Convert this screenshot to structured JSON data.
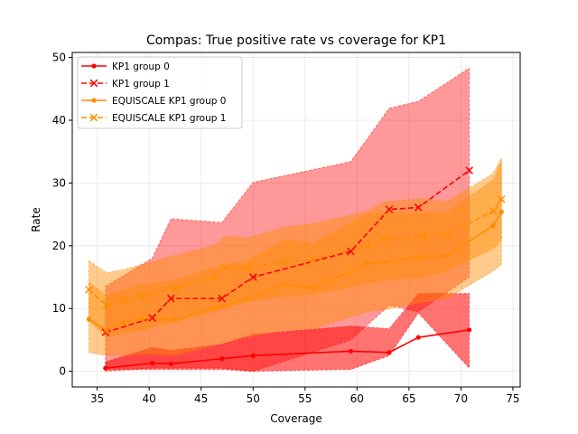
{
  "chart_data": {
    "type": "line",
    "title": "Compas: True positive rate vs coverage for KP1",
    "xlabel": "Coverage",
    "ylabel": "Rate",
    "xlim": [
      32.6,
      75.7
    ],
    "ylim": [
      -2.5,
      50.8
    ],
    "xticks": [
      35,
      40,
      45,
      50,
      55,
      60,
      65,
      70,
      75
    ],
    "yticks": [
      0,
      10,
      20,
      30,
      40,
      50
    ],
    "grid": true,
    "legend_position": "top-left",
    "series": [
      {
        "name": "KP1 group 0",
        "color": "#ff0000",
        "dashed": false,
        "marker": "dot",
        "x": [
          35.8,
          40.3,
          42.1,
          47.0,
          50.0,
          59.4,
          63.1,
          65.9,
          70.8
        ],
        "y": [
          0.5,
          1.3,
          1.2,
          2.0,
          2.5,
          3.2,
          3.0,
          5.4,
          6.6
        ],
        "band_lower": [
          0.3,
          0.3,
          0.3,
          0.3,
          0.0,
          0.3,
          2.5,
          9.3,
          0.5
        ],
        "band_upper": [
          1.5,
          3.8,
          3.3,
          4.3,
          5.9,
          7.2,
          6.8,
          12.4,
          12.4
        ],
        "band_color": "#ff0000",
        "band_opacity": 0.55
      },
      {
        "name": "KP1 group 1",
        "color": "#ff0000",
        "dashed": true,
        "marker": "x",
        "x": [
          35.8,
          40.3,
          42.1,
          47.0,
          50.0,
          59.4,
          63.1,
          65.9,
          70.8
        ],
        "y": [
          6.2,
          8.5,
          11.6,
          11.6,
          15.0,
          19.1,
          25.8,
          26.1,
          32.0
        ],
        "band_lower": [
          0.0,
          0.5,
          0.5,
          0.5,
          0.0,
          5.0,
          10.5,
          9.5,
          15.0
        ],
        "band_upper": [
          13.5,
          18.0,
          24.3,
          23.7,
          30.1,
          33.4,
          41.9,
          43.0,
          48.3
        ],
        "band_color": "#ff0000",
        "band_opacity": 0.4
      },
      {
        "name": "EQUISCALE KP1 group 0",
        "color": "#ff8c00",
        "dashed": false,
        "marker": "dot",
        "x": [
          34.2,
          35.9,
          37.5,
          39.3,
          42.5,
          46.2,
          49.4,
          53.1,
          55.8,
          61.0,
          62.6,
          66.3,
          68.6,
          73.1,
          73.9
        ],
        "y": [
          8.3,
          6.5,
          7.8,
          8.4,
          8.2,
          10.1,
          11.5,
          13.9,
          13.2,
          17.2,
          17.4,
          18.3,
          18.4,
          23.2,
          25.4
        ],
        "band_lower": [
          3.0,
          2.5,
          2.5,
          2.8,
          2.6,
          4.1,
          5.5,
          6.5,
          6.8,
          9.5,
          9.8,
          11.0,
          11.5,
          16.0,
          17.0
        ],
        "band_upper": [
          14.2,
          12.0,
          13.0,
          13.8,
          14.5,
          16.5,
          17.5,
          21.0,
          20.5,
          25.0,
          25.3,
          25.2,
          25.3,
          30.5,
          33.5
        ],
        "band_color": "#ff8c00",
        "band_opacity": 0.45
      },
      {
        "name": "EQUISCALE KP1 group 1",
        "color": "#ff8c00",
        "dashed": true,
        "marker": "x",
        "x": [
          34.2,
          35.9,
          37.5,
          39.3,
          42.5,
          46.2,
          47.3,
          49.4,
          53.1,
          55.8,
          61.0,
          62.6,
          66.3,
          68.6,
          73.1,
          73.9
        ],
        "y": [
          13.0,
          10.5,
          11.3,
          11.9,
          13.2,
          15.0,
          16.5,
          16.4,
          17.5,
          17.8,
          20.0,
          21.0,
          21.5,
          21.8,
          25.5,
          27.4
        ],
        "band_lower": [
          8.0,
          5.5,
          6.0,
          6.5,
          8.0,
          9.5,
          10.0,
          11.0,
          12.0,
          12.3,
          14.0,
          14.5,
          15.0,
          16.0,
          19.5,
          21.0
        ],
        "band_upper": [
          17.6,
          15.7,
          16.2,
          17.0,
          18.5,
          20.0,
          21.5,
          21.2,
          23.0,
          23.5,
          25.5,
          27.0,
          27.5,
          27.0,
          31.5,
          34.0
        ],
        "band_color": "#ff8c00",
        "band_opacity": 0.45
      }
    ]
  }
}
